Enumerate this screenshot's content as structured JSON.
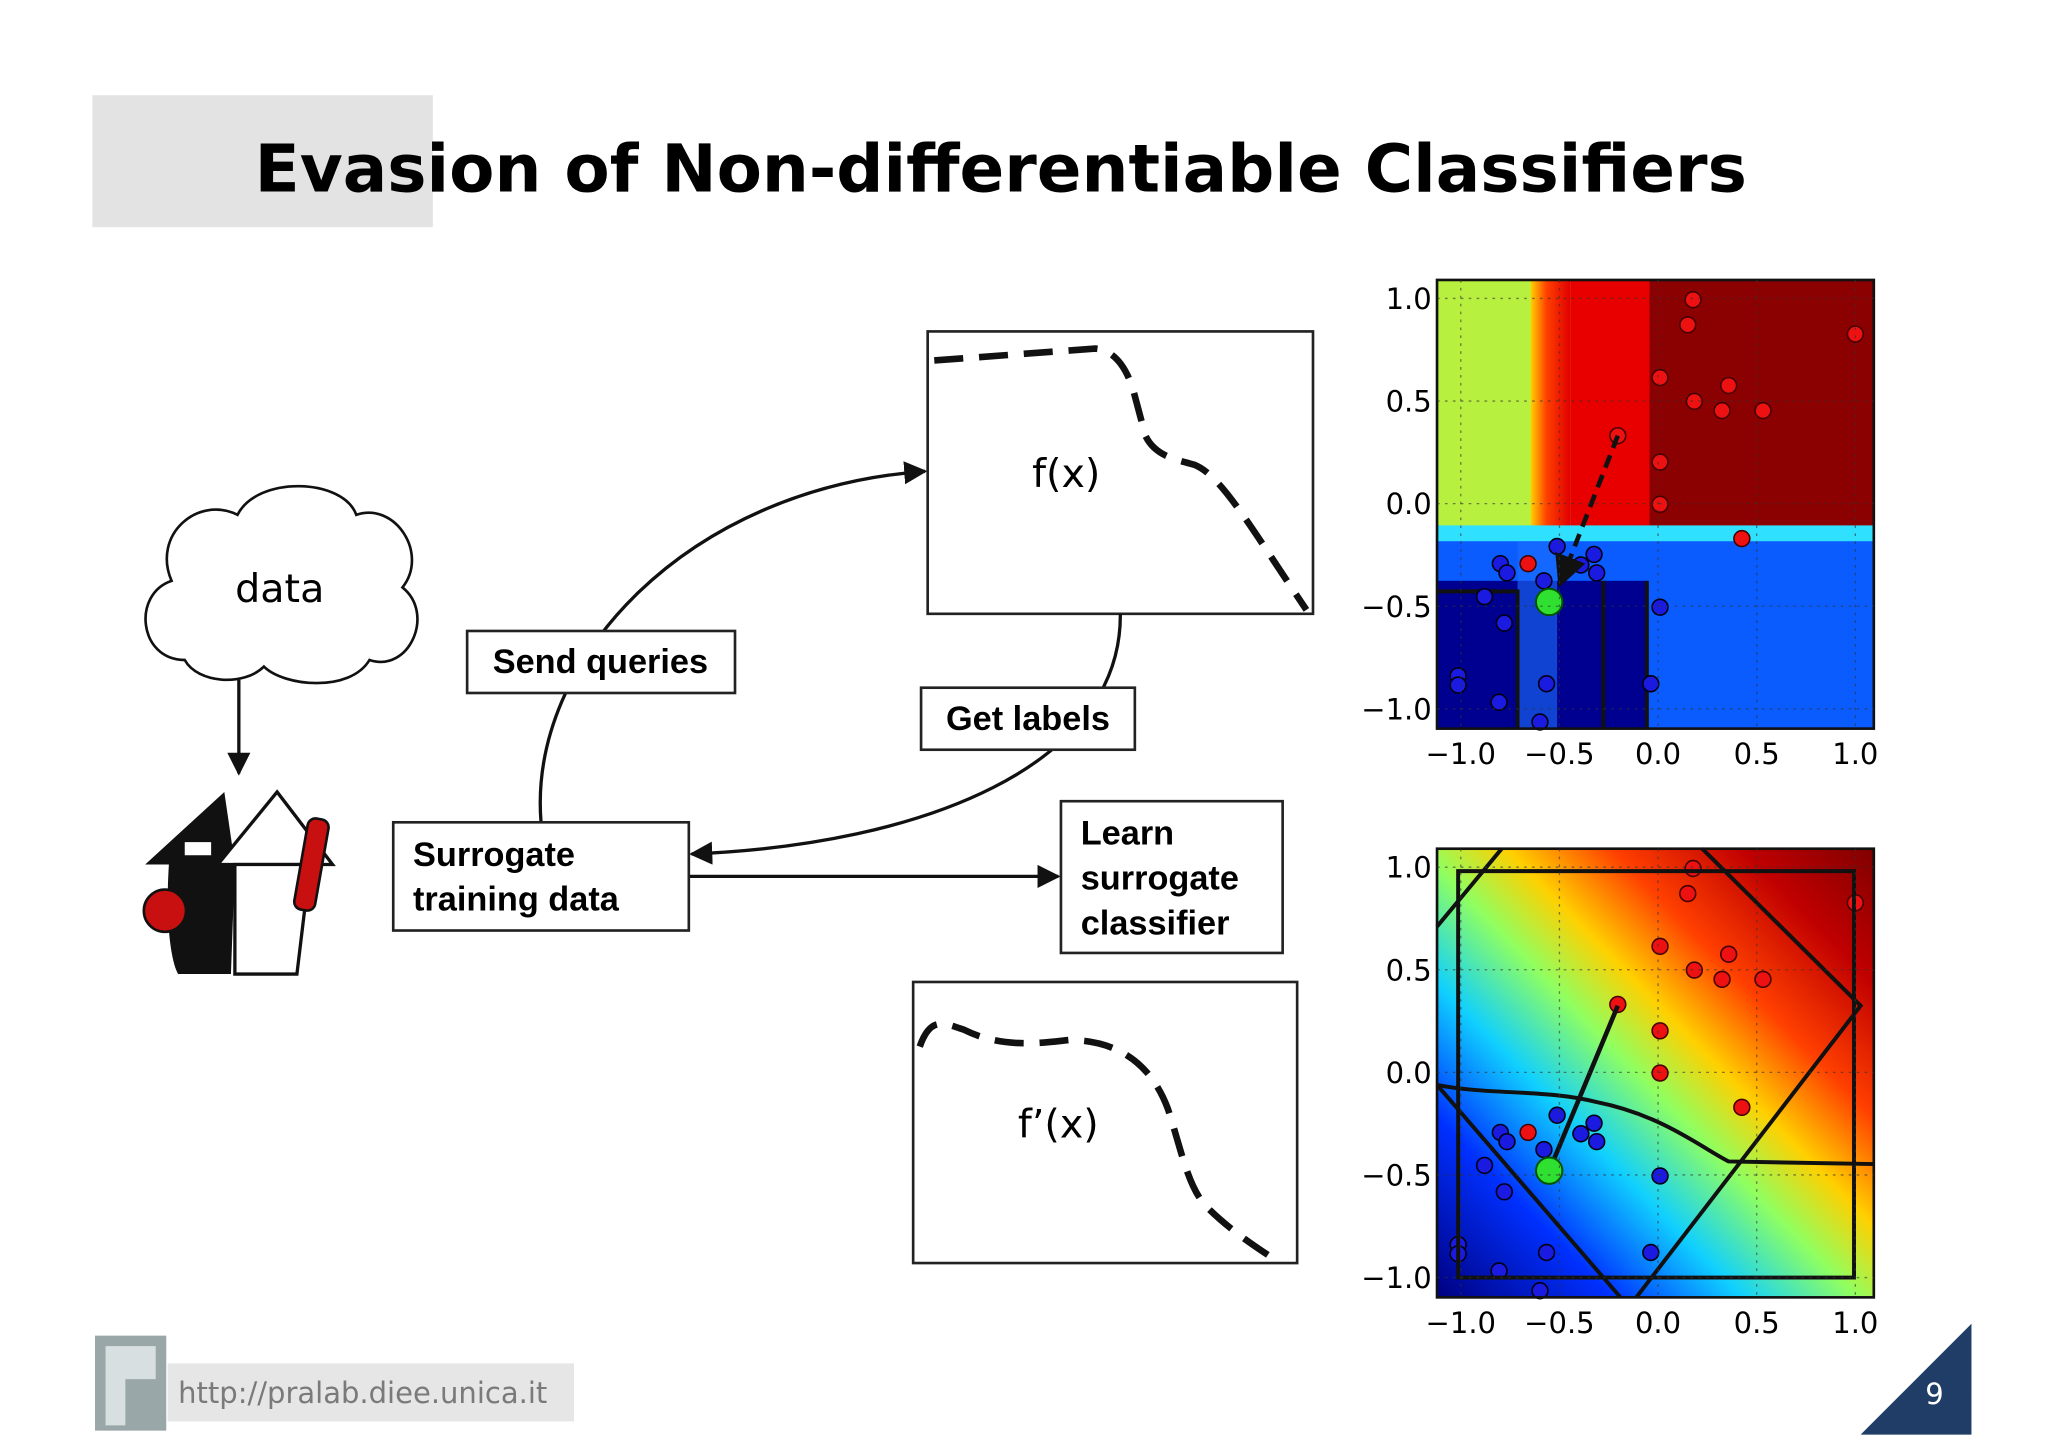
{
  "title": "Evasion of Non-differentiable Classifiers",
  "diagram": {
    "cloud": "data",
    "send_queries": "Send queries",
    "get_labels": "Get labels",
    "surrogate_training_data": [
      "Surrogate",
      "training data"
    ],
    "learn_surrogate_classifier": [
      "Learn",
      "surrogate",
      "classifier"
    ],
    "f": "f(x)",
    "f_surrogate": "f’(x)"
  },
  "plots": [
    {
      "xticks": [
        "−1.0",
        "−0.5",
        "0.0",
        "0.5",
        "1.0"
      ],
      "yticks": [
        "1.0",
        "0.5",
        "0.0",
        "−0.5",
        "−1.0"
      ]
    },
    {
      "xticks": [
        "−1.0",
        "−0.5",
        "0.0",
        "0.5",
        "1.0"
      ],
      "yticks": [
        "1.0",
        "0.5",
        "0.0",
        "−0.5",
        "−1.0"
      ]
    }
  ],
  "footer": {
    "url": "http://pralab.diee.unica.it",
    "page": 9
  }
}
